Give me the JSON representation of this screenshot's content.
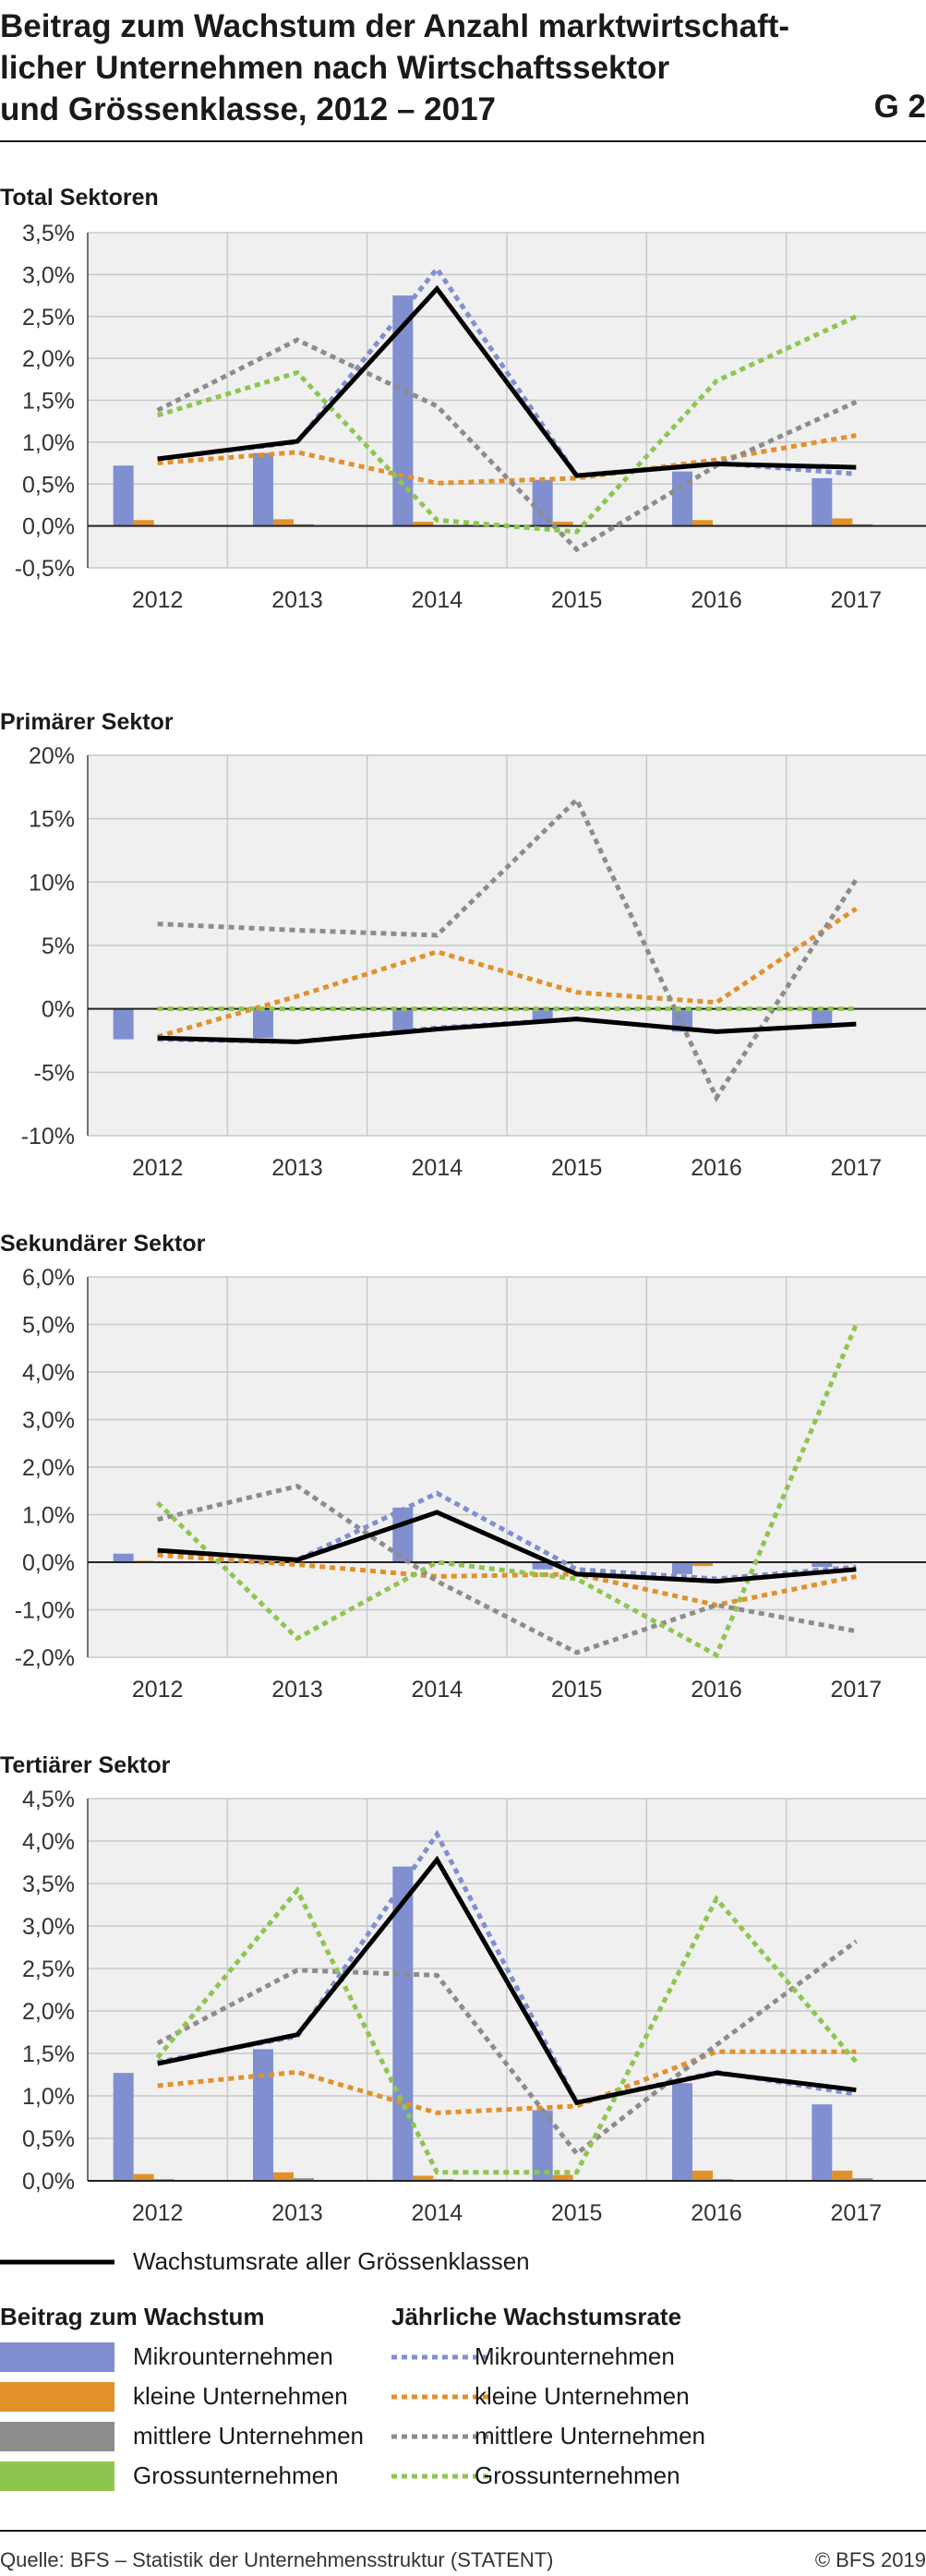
{
  "title": "Beitrag zum Wachstum der Anzahl marktwirtschaftlicher Unternehmen nach Wirtschaftssektor und Grössenklasse, 2012 – 2017",
  "title_lines": [
    "Beitrag zum Wachstum der Anzahl marktwirtschaft-",
    "licher Unternehmen nach Wirtschaftssektor",
    "und Grössenklasse, 2012 – 2017"
  ],
  "chart_id": "G 2",
  "legend": {
    "total_label": "Wachstumsrate aller Grössenklassen",
    "bars_header": "Beitrag zum Wachstum",
    "lines_header": "Jährliche Wachstumsrate",
    "bars": [
      "Mikrounternehmen",
      "kleine Unternehmen",
      "mittlere Unternehmen",
      "Grossunternehmen"
    ],
    "lines": [
      "Mikrounternehmen",
      "kleine Unternehmen",
      "mittlere Unternehmen",
      "Grossunternehmen"
    ]
  },
  "colors": {
    "micro": "#7f8fd0",
    "small": "#e2912a",
    "medium": "#8c8c8c",
    "large": "#8dc64f",
    "total": "#000000",
    "plot_bg": "#f0f0f0",
    "grid": "#c8c8c8"
  },
  "footer": {
    "source": "Quelle: BFS – Statistik der Unternehmensstruktur (STATENT)",
    "copyright": "© BFS 2019"
  },
  "chart_data": [
    {
      "type": "bar+line",
      "title": "Total Sektoren",
      "categories": [
        "2012",
        "2013",
        "2014",
        "2015",
        "2016",
        "2017"
      ],
      "ylim": [
        -0.5,
        3.5
      ],
      "yticks": [
        -0.5,
        0,
        0.5,
        1,
        1.5,
        2,
        2.5,
        3,
        3.5
      ],
      "ytick_labels": [
        "-0,5%",
        "0,0%",
        "0,5%",
        "1,0%",
        "1,5%",
        "2,0%",
        "2,5%",
        "3,0%",
        "3,5%"
      ],
      "bars": [
        {
          "name": "Mikrounternehmen",
          "values": [
            0.72,
            0.87,
            2.75,
            0.55,
            0.65,
            0.57
          ]
        },
        {
          "name": "kleine Unternehmen",
          "values": [
            0.07,
            0.08,
            0.05,
            0.05,
            0.07,
            0.09
          ]
        },
        {
          "name": "mittlere Unternehmen",
          "values": [
            0.01,
            0.02,
            0.01,
            0.0,
            0.01,
            0.02
          ]
        },
        {
          "name": "Grossunternehmen",
          "values": [
            0.0,
            0.0,
            0.0,
            0.0,
            0.0,
            0.0
          ]
        }
      ],
      "lines": [
        {
          "name": "Mikrounternehmen",
          "values": [
            0.8,
            1.0,
            3.07,
            0.6,
            0.75,
            0.62
          ]
        },
        {
          "name": "kleine Unternehmen",
          "values": [
            0.75,
            0.88,
            0.51,
            0.57,
            0.79,
            1.08
          ]
        },
        {
          "name": "mittlere Unternehmen",
          "values": [
            1.38,
            2.22,
            1.43,
            -0.28,
            0.72,
            1.48
          ]
        },
        {
          "name": "Grossunternehmen",
          "values": [
            1.32,
            1.83,
            0.07,
            -0.07,
            1.73,
            2.5
          ]
        }
      ],
      "total": [
        0.8,
        1.01,
        2.83,
        0.6,
        0.74,
        0.7
      ]
    },
    {
      "type": "bar+line",
      "title": "Primärer Sektor",
      "categories": [
        "2012",
        "2013",
        "2014",
        "2015",
        "2016",
        "2017"
      ],
      "ylim": [
        -10,
        20
      ],
      "yticks": [
        -10,
        -5,
        0,
        5,
        10,
        15,
        20
      ],
      "ytick_labels": [
        "-10%",
        "-5%",
        "0%",
        "5%",
        "10%",
        "15%",
        "20%"
      ],
      "bars": [
        {
          "name": "Mikrounternehmen",
          "values": [
            -2.4,
            -2.3,
            -1.7,
            -1.0,
            -1.8,
            -1.3
          ]
        },
        {
          "name": "kleine Unternehmen",
          "values": [
            0.05,
            0.05,
            0.1,
            0.04,
            0.02,
            0.1
          ]
        },
        {
          "name": "mittlere Unternehmen",
          "values": [
            0.01,
            0.0,
            0.01,
            0.02,
            -0.04,
            0.01
          ]
        },
        {
          "name": "Grossunternehmen",
          "values": [
            0.0,
            0.0,
            0.0,
            0.0,
            0.0,
            0.0
          ]
        }
      ],
      "lines": [
        {
          "name": "Mikrounternehmen",
          "values": [
            -2.4,
            -2.6,
            -1.5,
            -0.8,
            -1.8,
            -1.2
          ]
        },
        {
          "name": "kleine Unternehmen",
          "values": [
            -2.2,
            1.0,
            4.5,
            1.3,
            0.5,
            7.9
          ]
        },
        {
          "name": "mittlere Unternehmen",
          "values": [
            6.7,
            6.2,
            5.8,
            16.5,
            -7.0,
            10.2
          ]
        },
        {
          "name": "Grossunternehmen",
          "values": [
            0.0,
            0.0,
            0.0,
            0.0,
            0.0,
            0.0
          ]
        }
      ],
      "total": [
        -2.3,
        -2.6,
        -1.6,
        -0.8,
        -1.8,
        -1.2
      ]
    },
    {
      "type": "bar+line",
      "title": "Sekundärer Sektor",
      "categories": [
        "2012",
        "2013",
        "2014",
        "2015",
        "2016",
        "2017"
      ],
      "ylim": [
        -2,
        6
      ],
      "yticks": [
        -2,
        -1,
        0,
        1,
        2,
        3,
        4,
        5,
        6
      ],
      "ytick_labels": [
        "-2,0%",
        "-1,0%",
        "0,0%",
        "1,0%",
        "2,0%",
        "3,0%",
        "4,0%",
        "5,0%",
        "6,0%"
      ],
      "bars": [
        {
          "name": "Mikrounternehmen",
          "values": [
            0.18,
            0.05,
            1.15,
            -0.15,
            -0.25,
            -0.1
          ]
        },
        {
          "name": "kleine Unternehmen",
          "values": [
            0.03,
            0.0,
            -0.04,
            -0.04,
            -0.08,
            -0.03
          ]
        },
        {
          "name": "mittlere Unternehmen",
          "values": [
            0.01,
            0.01,
            -0.01,
            -0.01,
            -0.02,
            -0.01
          ]
        },
        {
          "name": "Grossunternehmen",
          "values": [
            0.0,
            0.0,
            0.0,
            0.0,
            0.0,
            0.0
          ]
        }
      ],
      "lines": [
        {
          "name": "Mikrounternehmen",
          "values": [
            0.22,
            0.05,
            1.45,
            -0.15,
            -0.35,
            -0.1
          ]
        },
        {
          "name": "kleine Unternehmen",
          "values": [
            0.15,
            -0.05,
            -0.3,
            -0.25,
            -0.9,
            -0.3
          ]
        },
        {
          "name": "mittlere Unternehmen",
          "values": [
            0.9,
            1.6,
            -0.4,
            -1.9,
            -0.9,
            -1.45
          ]
        },
        {
          "name": "Grossunternehmen",
          "values": [
            1.25,
            -1.6,
            0.0,
            -0.35,
            -1.95,
            5.0
          ]
        }
      ],
      "total": [
        0.25,
        0.05,
        1.05,
        -0.25,
        -0.4,
        -0.15
      ]
    },
    {
      "type": "bar+line",
      "title": "Tertiärer Sektor",
      "categories": [
        "2012",
        "2013",
        "2014",
        "2015",
        "2016",
        "2017"
      ],
      "ylim": [
        0,
        4.5
      ],
      "yticks": [
        0,
        0.5,
        1,
        1.5,
        2,
        2.5,
        3,
        3.5,
        4,
        4.5
      ],
      "ytick_labels": [
        "0,0%",
        "0,5%",
        "1,0%",
        "1,5%",
        "2,0%",
        "2,5%",
        "3,0%",
        "3,5%",
        "4,0%",
        "4,5%"
      ],
      "bars": [
        {
          "name": "Mikrounternehmen",
          "values": [
            1.27,
            1.55,
            3.7,
            0.83,
            1.15,
            0.9
          ]
        },
        {
          "name": "kleine Unternehmen",
          "values": [
            0.08,
            0.1,
            0.06,
            0.07,
            0.12,
            0.12
          ]
        },
        {
          "name": "mittlere Unternehmen",
          "values": [
            0.02,
            0.03,
            0.02,
            0.01,
            0.02,
            0.03
          ]
        },
        {
          "name": "Grossunternehmen",
          "values": [
            0.0,
            0.0,
            0.0,
            0.0,
            0.0,
            0.0
          ]
        }
      ],
      "lines": [
        {
          "name": "Mikrounternehmen",
          "values": [
            1.4,
            1.7,
            4.08,
            0.92,
            1.28,
            1.02
          ]
        },
        {
          "name": "kleine Unternehmen",
          "values": [
            1.12,
            1.28,
            0.8,
            0.88,
            1.52,
            1.52
          ]
        },
        {
          "name": "mittlere Unternehmen",
          "values": [
            1.62,
            2.48,
            2.42,
            0.32,
            1.6,
            2.82
          ]
        },
        {
          "name": "Grossunternehmen",
          "values": [
            1.45,
            3.42,
            0.1,
            0.1,
            3.32,
            1.4
          ]
        }
      ],
      "total": [
        1.38,
        1.72,
        3.78,
        0.92,
        1.27,
        1.07
      ]
    }
  ]
}
